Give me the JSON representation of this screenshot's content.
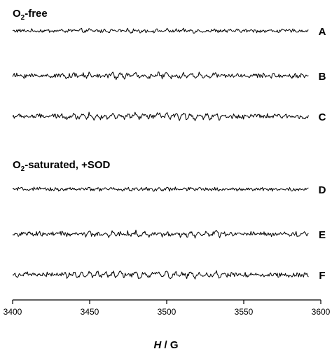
{
  "chart_data": {
    "type": "line",
    "title": "",
    "xlabel_italic": "H",
    "xlabel_rest": " / G",
    "xlim": [
      3400,
      3600
    ],
    "x_ticks": [
      3400,
      3450,
      3500,
      3550,
      3600
    ],
    "x_range_spectra": [
      3400,
      3592
    ],
    "groups": [
      {
        "main": "O",
        "sub": "2",
        "rest": "-free"
      },
      {
        "main": "O",
        "sub": "2",
        "rest": "-saturated, +SOD"
      }
    ],
    "series": [
      {
        "name": "A",
        "group": 0,
        "baseline_start": 0,
        "baseline_end": 0,
        "noise": 0.3,
        "hyperfine": 0.35
      },
      {
        "name": "B",
        "group": 0,
        "baseline_start": 0,
        "baseline_end": 0,
        "noise": 0.4,
        "hyperfine": 0.85
      },
      {
        "name": "C",
        "group": 0,
        "baseline_start": 0,
        "baseline_end": 0,
        "noise": 0.4,
        "hyperfine": 1.3
      },
      {
        "name": "D",
        "group": 1,
        "baseline_start": 0,
        "baseline_end": 0,
        "noise": 0.3,
        "hyperfine": 0.3
      },
      {
        "name": "E",
        "group": 1,
        "baseline_start": 0,
        "baseline_end": 0,
        "noise": 0.4,
        "hyperfine": 0.9
      },
      {
        "name": "F",
        "group": 1,
        "baseline_start": 0,
        "baseline_end": 0,
        "noise": 0.4,
        "hyperfine": 1.4
      }
    ],
    "hyperfine_lines_G": [
      3434,
      3441,
      3446,
      3451,
      3456,
      3461,
      3466,
      3471,
      3476,
      3481,
      3487,
      3496,
      3501,
      3507,
      3512,
      3517,
      3522,
      3527,
      3533,
      3538
    ],
    "grid": false,
    "legend": "none"
  }
}
